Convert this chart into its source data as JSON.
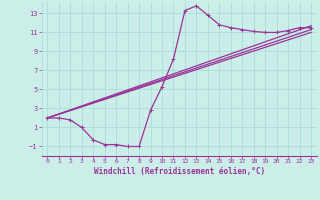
{
  "xlabel": "Windchill (Refroidissement éolien,°C)",
  "bg_color": "#cceee8",
  "grid_color": "#aaddd8",
  "line_color": "#993399",
  "xlim": [
    -0.5,
    23.5
  ],
  "ylim": [
    -2,
    14.2
  ],
  "xticks": [
    0,
    1,
    2,
    3,
    4,
    5,
    6,
    7,
    8,
    9,
    10,
    11,
    12,
    13,
    14,
    15,
    16,
    17,
    18,
    19,
    20,
    21,
    22,
    23
  ],
  "yticks": [
    -1,
    1,
    3,
    5,
    7,
    9,
    11,
    13
  ],
  "series1_x": [
    0,
    1,
    2,
    3,
    4,
    5,
    6,
    7,
    8,
    9,
    10,
    11,
    12,
    13,
    14,
    15,
    16,
    17,
    18,
    19,
    20,
    21,
    22,
    23
  ],
  "series1_y": [
    2.0,
    2.0,
    1.8,
    1.0,
    -0.3,
    -0.8,
    -0.8,
    -1.0,
    -1.0,
    2.8,
    5.3,
    8.2,
    13.3,
    13.8,
    12.8,
    11.8,
    11.5,
    11.3,
    11.1,
    11.0,
    11.0,
    11.2,
    11.5,
    11.5
  ],
  "series2_x": [
    0,
    23
  ],
  "series2_y": [
    2.0,
    11.7
  ],
  "series3_x": [
    0,
    23
  ],
  "series3_y": [
    2.0,
    11.3
  ],
  "series4_x": [
    0,
    23
  ],
  "series4_y": [
    2.0,
    11.0
  ],
  "marker_size": 2.5,
  "line_width": 0.9
}
